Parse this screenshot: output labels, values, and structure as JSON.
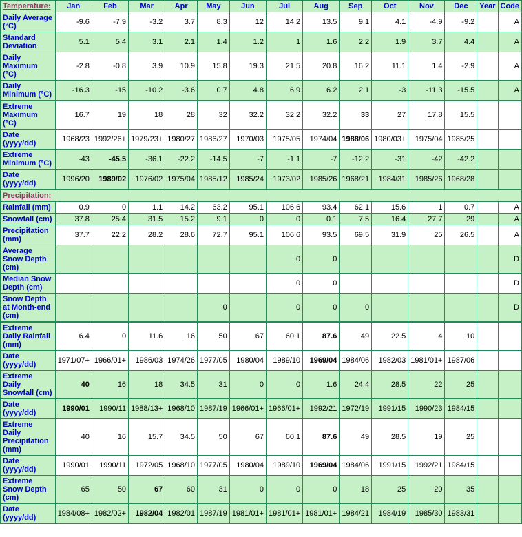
{
  "header": {
    "first": "Temperature:",
    "months": [
      "Jan",
      "Feb",
      "Mar",
      "Apr",
      "May",
      "Jun",
      "Jul",
      "Aug",
      "Sep",
      "Oct",
      "Nov",
      "Dec",
      "Year",
      "Code"
    ]
  },
  "rows": [
    {
      "label": "Daily Average (°C)",
      "cls": "white",
      "vals": [
        "-9.6",
        "-7.9",
        "-3.2",
        "3.7",
        "8.3",
        "12",
        "14.2",
        "13.5",
        "9.1",
        "4.1",
        "-4.9",
        "-9.2",
        "",
        "A"
      ]
    },
    {
      "label": "Standard Deviation",
      "cls": "green",
      "vals": [
        "5.1",
        "5.4",
        "3.1",
        "2.1",
        "1.4",
        "1.2",
        "1",
        "1.6",
        "2.2",
        "1.9",
        "3.7",
        "4.4",
        "",
        "A"
      ]
    },
    {
      "label": "Daily Maximum (°C)",
      "cls": "white",
      "vals": [
        "-2.8",
        "-0.8",
        "3.9",
        "10.9",
        "15.8",
        "19.3",
        "21.5",
        "20.8",
        "16.2",
        "11.1",
        "1.4",
        "-2.9",
        "",
        "A"
      ]
    },
    {
      "label": "Daily Minimum (°C)",
      "cls": "green section-bot",
      "vals": [
        "-16.3",
        "-15",
        "-10.2",
        "-3.6",
        "0.7",
        "4.8",
        "6.9",
        "6.2",
        "2.1",
        "-3",
        "-11.3",
        "-15.5",
        "",
        "A"
      ]
    },
    {
      "label": "Extreme Maximum (°C)",
      "cls": "white section-top",
      "vals": [
        "16.7",
        "19",
        "18",
        "28",
        "32",
        "32.2",
        "32.2",
        "32.2",
        "33",
        "27",
        "17.8",
        "15.5",
        "",
        ""
      ],
      "bold": [
        8
      ]
    },
    {
      "label": "Date (yyyy/dd)",
      "cls": "white",
      "vals": [
        "1968/23",
        "1992/26+",
        "1979/23+",
        "1980/27",
        "1986/27",
        "1970/03",
        "1975/05",
        "1974/04",
        "1988/06",
        "1980/03+",
        "1975/04",
        "1985/25",
        "",
        ""
      ],
      "bold": [
        8
      ]
    },
    {
      "label": "Extreme Minimum (°C)",
      "cls": "green",
      "vals": [
        "-43",
        "-45.5",
        "-36.1",
        "-22.2",
        "-14.5",
        "-7",
        "-1.1",
        "-7",
        "-12.2",
        "-31",
        "-42",
        "-42.2",
        "",
        ""
      ],
      "bold": [
        1
      ]
    },
    {
      "label": "Date (yyyy/dd)",
      "cls": "green section-bot",
      "vals": [
        "1996/20",
        "1989/02",
        "1976/02",
        "1975/04",
        "1985/12",
        "1985/24",
        "1973/02",
        "1985/26",
        "1968/21",
        "1984/31",
        "1985/26",
        "1968/28",
        "",
        ""
      ],
      "bold": [
        1
      ]
    }
  ],
  "precip_header": "Precipitation:",
  "precip_rows": [
    {
      "label": "Rainfall (mm)",
      "cls": "white",
      "vals": [
        "0.9",
        "0",
        "1.1",
        "14.2",
        "63.2",
        "95.1",
        "106.6",
        "93.4",
        "62.1",
        "15.6",
        "1",
        "0.7",
        "",
        "A"
      ]
    },
    {
      "label": "Snowfall (cm)",
      "cls": "green",
      "vals": [
        "37.8",
        "25.4",
        "31.5",
        "15.2",
        "9.1",
        "0",
        "0",
        "0.1",
        "7.5",
        "16.4",
        "27.7",
        "29",
        "",
        "A"
      ]
    },
    {
      "label": "Precipitation (mm)",
      "cls": "white",
      "vals": [
        "37.7",
        "22.2",
        "28.2",
        "28.6",
        "72.7",
        "95.1",
        "106.6",
        "93.5",
        "69.5",
        "31.9",
        "25",
        "26.5",
        "",
        "A"
      ]
    },
    {
      "label": "Average Snow Depth (cm)",
      "cls": "green",
      "vals": [
        "",
        "",
        "",
        "",
        "",
        "",
        "0",
        "0",
        "",
        "",
        "",
        "",
        "",
        "D"
      ]
    },
    {
      "label": "Median Snow Depth (cm)",
      "cls": "white",
      "vals": [
        "",
        "",
        "",
        "",
        "",
        "",
        "0",
        "0",
        "",
        "",
        "",
        "",
        "",
        "D"
      ]
    },
    {
      "label": "Snow Depth at Month-end (cm)",
      "cls": "green section-bot",
      "vals": [
        "",
        "",
        "",
        "",
        "0",
        "",
        "0",
        "0",
        "0",
        "",
        "",
        "",
        "",
        "D"
      ]
    },
    {
      "label": "Extreme Daily Rainfall (mm)",
      "cls": "white section-top",
      "vals": [
        "6.4",
        "0",
        "11.6",
        "16",
        "50",
        "67",
        "60.1",
        "87.6",
        "49",
        "22.5",
        "4",
        "10",
        "",
        ""
      ],
      "bold": [
        7
      ]
    },
    {
      "label": "Date (yyyy/dd)",
      "cls": "white",
      "vals": [
        "1971/07+",
        "1966/01+",
        "1986/03",
        "1974/26",
        "1977/05",
        "1980/04",
        "1989/10",
        "1969/04",
        "1984/06",
        "1982/03",
        "1981/01+",
        "1987/06",
        "",
        ""
      ],
      "bold": [
        7
      ]
    },
    {
      "label": "Extreme Daily Snowfall (cm)",
      "cls": "green",
      "vals": [
        "40",
        "16",
        "18",
        "34.5",
        "31",
        "0",
        "0",
        "1.6",
        "24.4",
        "28.5",
        "22",
        "25",
        "",
        ""
      ],
      "bold": [
        0
      ]
    },
    {
      "label": "Date (yyyy/dd)",
      "cls": "green",
      "vals": [
        "1990/01",
        "1990/11",
        "1988/13+",
        "1968/10",
        "1987/19",
        "1966/01+",
        "1966/01+",
        "1992/21",
        "1972/19",
        "1991/15",
        "1990/23",
        "1984/15",
        "",
        ""
      ],
      "bold": [
        0
      ]
    },
    {
      "label": "Extreme Daily Precipitation (mm)",
      "cls": "white",
      "vals": [
        "40",
        "16",
        "15.7",
        "34.5",
        "50",
        "67",
        "60.1",
        "87.6",
        "49",
        "28.5",
        "19",
        "25",
        "",
        ""
      ],
      "bold": [
        7
      ]
    },
    {
      "label": "Date (yyyy/dd)",
      "cls": "white",
      "vals": [
        "1990/01",
        "1990/11",
        "1972/05",
        "1968/10",
        "1977/05",
        "1980/04",
        "1989/10",
        "1969/04",
        "1984/06",
        "1991/15",
        "1992/21",
        "1984/15",
        "",
        ""
      ],
      "bold": [
        7
      ]
    },
    {
      "label": "Extreme Snow Depth (cm)",
      "cls": "green",
      "vals": [
        "65",
        "50",
        "67",
        "60",
        "31",
        "0",
        "0",
        "0",
        "18",
        "25",
        "20",
        "35",
        "",
        ""
      ],
      "bold": [
        2
      ]
    },
    {
      "label": "Date (yyyy/dd)",
      "cls": "green",
      "vals": [
        "1984/08+",
        "1982/02+",
        "1982/04",
        "1982/01",
        "1987/19",
        "1981/01+",
        "1981/01+",
        "1981/01+",
        "1984/21",
        "1984/19",
        "1985/30",
        "1983/31",
        "",
        ""
      ],
      "bold": [
        2
      ]
    }
  ],
  "styling": {
    "border_color": "#228B5A",
    "green_bg": "#c6f0c6",
    "white_bg": "#ffffff",
    "label_color": "#0000cc",
    "section_color": "#8B3A62",
    "font_size": 11
  }
}
